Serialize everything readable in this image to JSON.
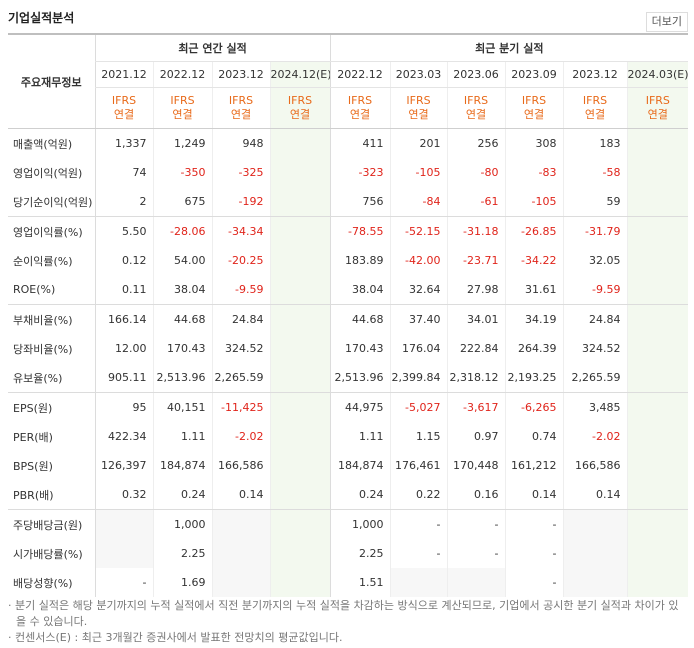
{
  "header": {
    "title": "기업실적분석",
    "more": "더보기"
  },
  "table": {
    "corner": "주요재무정보",
    "annual_title": "최근 연간 실적",
    "quarterly_title": "최근 분기 실적",
    "annual_count": 4,
    "columns": [
      {
        "period": "2021.12",
        "standard": "IFRS",
        "consolidation": "연결",
        "estimate": false
      },
      {
        "period": "2022.12",
        "standard": "IFRS",
        "consolidation": "연결",
        "estimate": false
      },
      {
        "period": "2023.12",
        "standard": "IFRS",
        "consolidation": "연결",
        "estimate": false
      },
      {
        "period": "2024.12(E)",
        "standard": "IFRS",
        "consolidation": "연결",
        "estimate": true
      },
      {
        "period": "2022.12",
        "standard": "IFRS",
        "consolidation": "연결",
        "estimate": false
      },
      {
        "period": "2023.03",
        "standard": "IFRS",
        "consolidation": "연결",
        "estimate": false
      },
      {
        "period": "2023.06",
        "standard": "IFRS",
        "consolidation": "연결",
        "estimate": false
      },
      {
        "period": "2023.09",
        "standard": "IFRS",
        "consolidation": "연결",
        "estimate": false
      },
      {
        "period": "2023.12",
        "standard": "IFRS",
        "consolidation": "연결",
        "estimate": false
      },
      {
        "period": "2024.03(E)",
        "standard": "IFRS",
        "consolidation": "연결",
        "estimate": true
      }
    ],
    "groups": [
      {
        "rows": [
          {
            "label": "매출액(억원)",
            "values": [
              "1,337",
              "1,249",
              "948",
              null,
              "411",
              "201",
              "256",
              "308",
              "183",
              null
            ]
          },
          {
            "label": "영업이익(억원)",
            "values": [
              "74",
              "-350",
              "-325",
              null,
              "-323",
              "-105",
              "-80",
              "-83",
              "-58",
              null
            ]
          },
          {
            "label": "당기순이익(억원)",
            "values": [
              "2",
              "675",
              "-192",
              null,
              "756",
              "-84",
              "-61",
              "-105",
              "59",
              null
            ]
          }
        ]
      },
      {
        "rows": [
          {
            "label": "영업이익률(%)",
            "values": [
              "5.50",
              "-28.06",
              "-34.34",
              null,
              "-78.55",
              "-52.15",
              "-31.18",
              "-26.85",
              "-31.79",
              null
            ]
          },
          {
            "label": "순이익률(%)",
            "values": [
              "0.12",
              "54.00",
              "-20.25",
              null,
              "183.89",
              "-42.00",
              "-23.71",
              "-34.22",
              "32.05",
              null
            ]
          },
          {
            "label": "ROE(%)",
            "values": [
              "0.11",
              "38.04",
              "-9.59",
              null,
              "38.04",
              "32.64",
              "27.98",
              "31.61",
              "-9.59",
              null
            ]
          }
        ]
      },
      {
        "rows": [
          {
            "label": "부채비율(%)",
            "values": [
              "166.14",
              "44.68",
              "24.84",
              null,
              "44.68",
              "37.40",
              "34.01",
              "34.19",
              "24.84",
              null
            ]
          },
          {
            "label": "당좌비율(%)",
            "values": [
              "12.00",
              "170.43",
              "324.52",
              null,
              "170.43",
              "176.04",
              "222.84",
              "264.39",
              "324.52",
              null
            ]
          },
          {
            "label": "유보율(%)",
            "values": [
              "905.11",
              "2,513.96",
              "2,265.59",
              null,
              "2,513.96",
              "2,399.84",
              "2,318.12",
              "2,193.25",
              "2,265.59",
              null
            ]
          }
        ]
      },
      {
        "rows": [
          {
            "label": "EPS(원)",
            "values": [
              "95",
              "40,151",
              "-11,425",
              null,
              "44,975",
              "-5,027",
              "-3,617",
              "-6,265",
              "3,485",
              null
            ]
          },
          {
            "label": "PER(배)",
            "values": [
              "422.34",
              "1.11",
              "-2.02",
              null,
              "1.11",
              "1.15",
              "0.97",
              "0.74",
              "-2.02",
              null
            ]
          },
          {
            "label": "BPS(원)",
            "values": [
              "126,397",
              "184,874",
              "166,586",
              null,
              "184,874",
              "176,461",
              "170,448",
              "161,212",
              "166,586",
              null
            ]
          },
          {
            "label": "PBR(배)",
            "values": [
              "0.32",
              "0.24",
              "0.14",
              null,
              "0.24",
              "0.22",
              "0.16",
              "0.14",
              "0.14",
              null
            ]
          }
        ]
      },
      {
        "rows": [
          {
            "label": "주당배당금(원)",
            "values": [
              null,
              "1,000",
              null,
              null,
              "1,000",
              "-",
              "-",
              "-",
              null,
              null
            ]
          },
          {
            "label": "시가배당률(%)",
            "values": [
              null,
              "2.25",
              null,
              null,
              "2.25",
              "-",
              "-",
              "-",
              null,
              null
            ]
          },
          {
            "label": "배당성향(%)",
            "values": [
              "-",
              "1.69",
              null,
              null,
              "1.51",
              null,
              null,
              "-",
              null,
              null
            ]
          }
        ]
      }
    ]
  },
  "notes": [
    "분기 실적은 해당 분기까지의 누적 실적에서 직전 분기까지의 누적 실적을 차감하는 방식으로 계산되므로, 기업에서 공시한 분기 실적과 차이가 있을 수 있습니다.",
    "컨센서스(E) : 최근 3개월간 증권사에서 발표한 전망치의 평균값입니다."
  ]
}
